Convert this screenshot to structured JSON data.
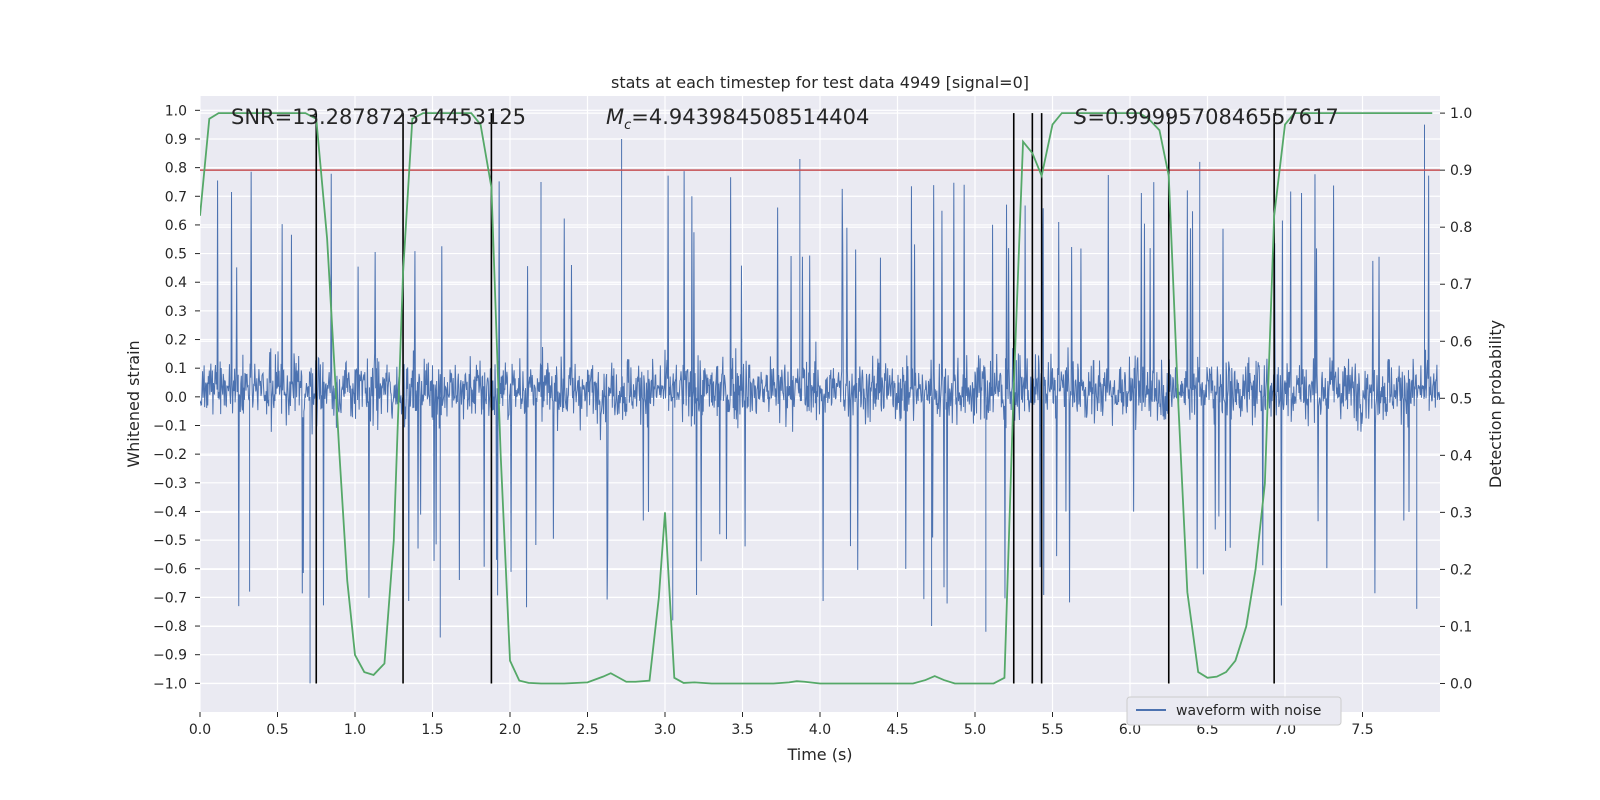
{
  "chart_data": {
    "type": "line",
    "title": "stats at each timestep for test data 4949 [signal=0]",
    "xlabel": "Time (s)",
    "ylabel_left": "Whitened strain",
    "ylabel_right": "Detection probability",
    "xlim": [
      0,
      8
    ],
    "ylim_left": [
      -1.1,
      1.05
    ],
    "ylim_right": [
      -0.05,
      1.03
    ],
    "x_ticks": [
      0.0,
      0.5,
      1.0,
      1.5,
      2.0,
      2.5,
      3.0,
      3.5,
      4.0,
      4.5,
      5.0,
      5.5,
      6.0,
      6.5,
      7.0,
      7.5
    ],
    "x_tick_labels": [
      "0.0",
      "0.5",
      "1.0",
      "1.5",
      "2.0",
      "2.5",
      "3.0",
      "3.5",
      "4.0",
      "4.5",
      "5.0",
      "5.5",
      "6.0",
      "6.5",
      "7.0",
      "7.5"
    ],
    "y_left_ticks": [
      1.0,
      0.9,
      0.8,
      0.7,
      0.6,
      0.5,
      0.4,
      0.3,
      0.2,
      0.1,
      0.0,
      -0.1,
      -0.2,
      -0.3,
      -0.4,
      -0.5,
      -0.6,
      -0.7,
      -0.8,
      -0.9,
      -1.0
    ],
    "y_left_tick_labels": [
      "1.0",
      "0.9",
      "0.8",
      "0.7",
      "0.6",
      "0.5",
      "0.4",
      "0.3",
      "0.2",
      "0.1",
      "0.0",
      "−0.1",
      "−0.2",
      "−0.3",
      "−0.4",
      "−0.5",
      "−0.6",
      "−0.7",
      "−0.8",
      "−0.9",
      "−1.0"
    ],
    "y_right_ticks": [
      1.0,
      0.9,
      0.8,
      0.7,
      0.6,
      0.5,
      0.4,
      0.3,
      0.2,
      0.1,
      0.0
    ],
    "y_right_tick_labels": [
      "1.0",
      "0.9",
      "0.8",
      "0.7",
      "0.6",
      "0.5",
      "0.4",
      "0.3",
      "0.2",
      "0.1",
      "0.0"
    ],
    "grid": true,
    "legend": {
      "placement": "lower-right",
      "entries": [
        "waveform with noise"
      ]
    },
    "annotations": {
      "snr": "SNR=13.287872314453125",
      "mc_symbol": "M",
      "mc_subscript": "c",
      "mc_value": "=4.943984508514404",
      "s_symbol": "S",
      "s_value": "=0.9999570846557617"
    },
    "threshold": {
      "axis": "right",
      "value": 0.9,
      "color": "#c44e52"
    },
    "vertical_markers_x": [
      0.75,
      1.31,
      1.88,
      5.25,
      5.37,
      5.43,
      6.25,
      6.93
    ],
    "waveform": {
      "name": "waveform with noise",
      "color": "#4c72b0",
      "sample_rate_hz": 2048,
      "duration_s": 8,
      "typical_envelope": [
        -0.4,
        0.45
      ],
      "spikes": [
        {
          "x": 0.71,
          "y": -1.0
        },
        {
          "x": 1.55,
          "y": -0.84
        },
        {
          "x": 2.72,
          "y": 0.9
        },
        {
          "x": 3.05,
          "y": -0.78
        },
        {
          "x": 3.87,
          "y": 0.83
        },
        {
          "x": 4.72,
          "y": -0.8
        },
        {
          "x": 5.07,
          "y": -0.82
        },
        {
          "x": 6.45,
          "y": 0.82
        },
        {
          "x": 7.9,
          "y": 0.95
        },
        {
          "x": 7.85,
          "y": -0.74
        },
        {
          "x": 0.32,
          "y": -0.68
        },
        {
          "x": 2.2,
          "y": 0.75
        }
      ]
    },
    "detection_probability": {
      "color": "#55a868",
      "x": [
        0.0,
        0.06,
        0.12,
        0.2,
        0.3,
        0.4,
        0.5,
        0.6,
        0.68,
        0.75,
        0.82,
        0.9,
        0.95,
        1.0,
        1.06,
        1.12,
        1.19,
        1.25,
        1.31,
        1.37,
        1.44,
        1.5,
        1.6,
        1.7,
        1.75,
        1.81,
        1.88,
        1.94,
        2.0,
        2.06,
        2.12,
        2.2,
        2.35,
        2.5,
        2.6,
        2.65,
        2.69,
        2.75,
        2.81,
        2.9,
        2.96,
        3.0,
        3.06,
        3.12,
        3.19,
        3.3,
        3.5,
        3.7,
        3.8,
        3.85,
        3.9,
        4.0,
        4.2,
        4.4,
        4.6,
        4.68,
        4.74,
        4.8,
        4.87,
        5.0,
        5.12,
        5.19,
        5.25,
        5.31,
        5.37,
        5.43,
        5.5,
        5.56,
        5.62,
        5.75,
        5.9,
        6.0,
        6.06,
        6.12,
        6.19,
        6.25,
        6.31,
        6.37,
        6.44,
        6.5,
        6.56,
        6.62,
        6.68,
        6.75,
        6.81,
        6.87,
        6.93,
        7.0,
        7.06,
        7.12,
        7.3,
        7.5,
        7.7,
        7.95
      ],
      "y": [
        0.82,
        0.99,
        1.0,
        1.0,
        1.0,
        1.0,
        1.0,
        1.0,
        1.0,
        0.99,
        0.78,
        0.4,
        0.18,
        0.05,
        0.02,
        0.015,
        0.035,
        0.25,
        0.72,
        0.99,
        1.0,
        1.0,
        1.0,
        1.0,
        1.0,
        0.98,
        0.87,
        0.4,
        0.04,
        0.005,
        0.001,
        0.0,
        0.0,
        0.002,
        0.012,
        0.018,
        0.012,
        0.003,
        0.003,
        0.005,
        0.15,
        0.3,
        0.01,
        0.001,
        0.002,
        0.0,
        0.0,
        0.0,
        0.002,
        0.004,
        0.003,
        0.0,
        0.0,
        0.0,
        0.0,
        0.006,
        0.013,
        0.006,
        0.0,
        0.0,
        0.0,
        0.01,
        0.52,
        0.95,
        0.93,
        0.89,
        0.98,
        1.0,
        1.0,
        1.0,
        1.0,
        1.0,
        1.0,
        0.99,
        0.97,
        0.89,
        0.5,
        0.16,
        0.02,
        0.01,
        0.012,
        0.02,
        0.04,
        0.1,
        0.2,
        0.35,
        0.82,
        0.98,
        1.0,
        1.0,
        1.0,
        1.0,
        1.0,
        1.0
      ]
    }
  }
}
